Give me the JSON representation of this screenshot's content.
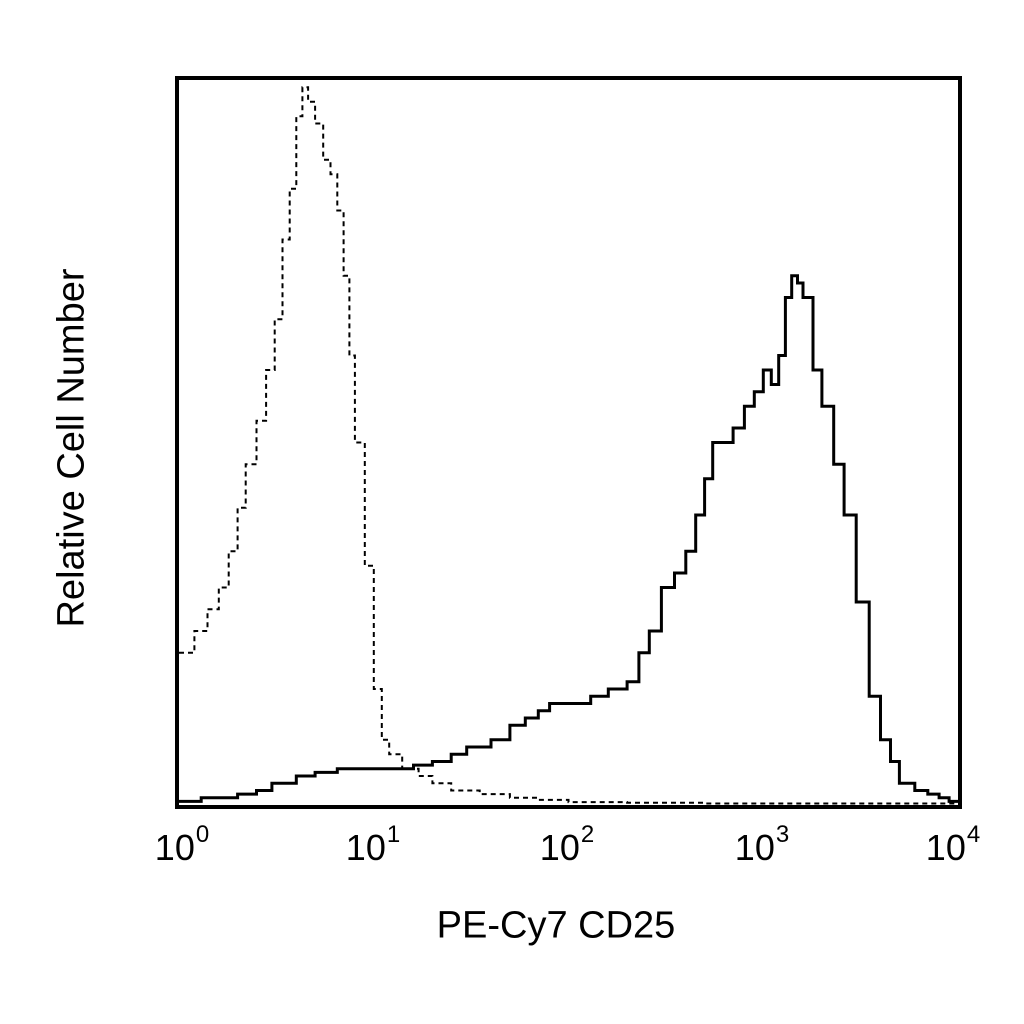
{
  "chart_data": {
    "type": "line",
    "title": "",
    "xlabel": "PE-Cy7 CD25",
    "ylabel": "Relative Cell Number",
    "x_scale": "log",
    "xlim": [
      1,
      10000
    ],
    "ylim": [
      0,
      100
    ],
    "grid": false,
    "legend": "none",
    "x_ticks": [
      {
        "value": 1,
        "base": "10",
        "exp": "0"
      },
      {
        "value": 10,
        "base": "10",
        "exp": "1"
      },
      {
        "value": 100,
        "base": "10",
        "exp": "2"
      },
      {
        "value": 1000,
        "base": "10",
        "exp": "3"
      },
      {
        "value": 10000,
        "base": "10",
        "exp": "4"
      }
    ],
    "series": [
      {
        "style": "dashed",
        "color": "#000000",
        "x": [
          1,
          1.2,
          1.4,
          1.6,
          1.8,
          2.0,
          2.2,
          2.5,
          2.8,
          3.1,
          3.4,
          3.7,
          4.0,
          4.3,
          4.6,
          5.0,
          5.5,
          6.0,
          6.5,
          7.0,
          7.5,
          8.0,
          9.0,
          10.0,
          11,
          12,
          14,
          17,
          20,
          25,
          35,
          50,
          70,
          100,
          200,
          500,
          1000,
          2000,
          5000,
          10000
        ],
        "y": [
          21,
          24,
          27,
          30,
          35,
          41,
          47,
          53,
          60,
          67,
          78,
          85,
          95,
          99,
          97,
          94,
          89,
          87,
          82,
          73,
          62,
          50,
          33,
          16,
          9,
          7,
          5,
          4,
          3,
          2,
          1.5,
          1,
          0.7,
          0.4,
          0.3,
          0.2,
          0.2,
          0.2,
          0.2,
          0.2
        ]
      },
      {
        "style": "solid",
        "color": "#000000",
        "x": [
          1,
          1.3,
          1.6,
          2.0,
          2.5,
          3.0,
          4.0,
          5.0,
          6.5,
          8.0,
          10,
          13,
          16,
          20,
          25,
          30,
          40,
          50,
          60,
          70,
          80,
          100,
          130,
          160,
          200,
          230,
          260,
          300,
          350,
          400,
          450,
          500,
          550,
          600,
          700,
          800,
          900,
          1000,
          1100,
          1200,
          1300,
          1400,
          1500,
          1600,
          1800,
          2000,
          2300,
          2600,
          3000,
          3500,
          4000,
          4500,
          5000,
          6000,
          7000,
          8000,
          9000,
          10000
        ],
        "y": [
          0.5,
          1,
          1,
          1.5,
          2,
          3,
          4,
          4.5,
          5,
          5,
          5,
          5,
          5.5,
          6,
          7,
          8,
          9,
          11,
          12,
          13,
          14,
          14,
          15,
          16,
          17,
          21,
          24,
          30,
          32,
          35,
          40,
          45,
          50,
          50,
          52,
          55,
          57,
          60,
          58,
          62,
          70,
          73,
          72,
          70,
          60,
          55,
          47,
          40,
          28,
          15,
          9,
          6,
          3,
          2,
          1.5,
          1,
          0.5,
          0.3
        ]
      }
    ]
  }
}
